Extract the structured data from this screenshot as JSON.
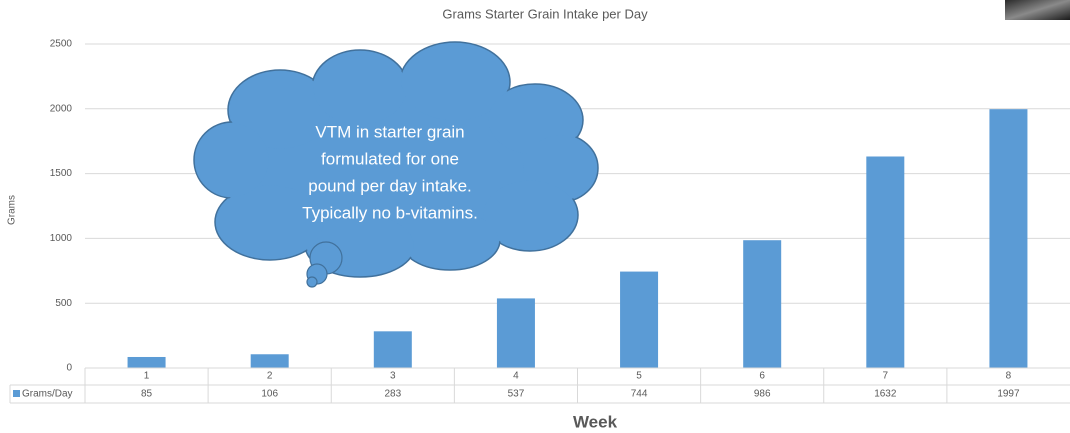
{
  "chart_data": {
    "type": "bar",
    "title": "Grams Starter Grain Intake per Day",
    "y_label": "Grams",
    "x_label": "Week",
    "categories": [
      "1",
      "2",
      "3",
      "4",
      "5",
      "6",
      "7",
      "8"
    ],
    "series": [
      {
        "name": "Grams/Day",
        "color": "#5b9bd5",
        "values": [
          85,
          106,
          283,
          537,
          744,
          986,
          1632,
          1997
        ]
      }
    ],
    "ylim": [
      0,
      2500
    ],
    "yticks": [
      0,
      500,
      1000,
      1500,
      2000,
      2500
    ],
    "grid": true,
    "annotation": [
      "VTM in starter grain",
      "formulated for one",
      "pound per day intake.",
      "Typically no b-vitamins."
    ]
  }
}
